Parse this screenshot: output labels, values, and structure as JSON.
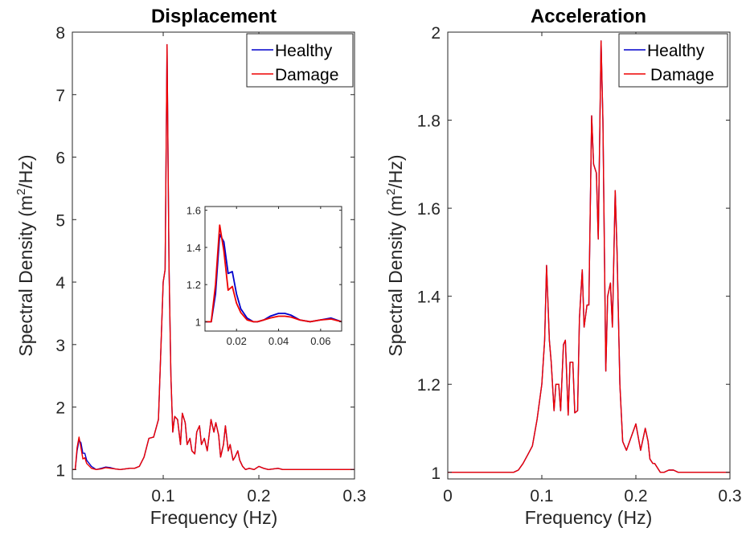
{
  "chart_data": [
    {
      "type": "line",
      "title": "Displacement",
      "xlabel": "Frequency (Hz)",
      "ylabel": "Spectral Density (m²/Hz)",
      "ylabel_parts": {
        "pre": "Spectral Density (m",
        "sup": "2",
        "post": "/Hz)"
      },
      "xlim": [
        0.005,
        0.3
      ],
      "ylim": [
        0.85,
        8
      ],
      "xticks": [
        0.1,
        0.2,
        0.3
      ],
      "xtick_labels": [
        "0.1",
        "0.2",
        "0.3"
      ],
      "yticks": [
        1,
        2,
        3,
        4,
        5,
        6,
        7,
        8
      ],
      "ytick_labels": [
        "1",
        "2",
        "3",
        "4",
        "5",
        "6",
        "7",
        "8"
      ],
      "legend_placement": "top-right",
      "grid": false,
      "series": [
        {
          "name": "Healthy",
          "color": "#0000cc",
          "x": [
            0.005,
            0.008,
            0.01,
            0.012,
            0.014,
            0.016,
            0.018,
            0.02,
            0.025,
            0.03,
            0.035,
            0.04,
            0.045,
            0.05,
            0.055,
            0.06,
            0.065,
            0.07,
            0.075,
            0.08,
            0.085,
            0.09,
            0.095,
            0.1,
            0.102,
            0.104,
            0.106,
            0.108,
            0.11,
            0.112,
            0.115,
            0.118,
            0.12,
            0.123,
            0.125,
            0.128,
            0.13,
            0.133,
            0.135,
            0.138,
            0.14,
            0.143,
            0.146,
            0.15,
            0.153,
            0.155,
            0.158,
            0.16,
            0.163,
            0.165,
            0.168,
            0.17,
            0.173,
            0.175,
            0.178,
            0.18,
            0.183,
            0.186,
            0.19,
            0.195,
            0.2,
            0.205,
            0.21,
            0.215,
            0.22,
            0.225,
            0.23,
            0.25,
            0.27,
            0.3
          ],
          "y": [
            1.0,
            1.0,
            1.3,
            1.47,
            1.43,
            1.26,
            1.26,
            1.15,
            1.05,
            1.0,
            1.02,
            1.04,
            1.03,
            1.01,
            1.0,
            1.01,
            1.02,
            1.02,
            1.05,
            1.2,
            1.5,
            1.52,
            1.8,
            4.0,
            4.2,
            7.8,
            4.3,
            2.5,
            1.6,
            1.85,
            1.8,
            1.4,
            1.9,
            1.75,
            1.4,
            1.5,
            1.3,
            1.25,
            1.6,
            1.7,
            1.4,
            1.5,
            1.3,
            1.8,
            1.6,
            1.75,
            1.55,
            1.2,
            1.4,
            1.7,
            1.3,
            1.4,
            1.15,
            1.2,
            1.3,
            1.15,
            1.05,
            1.0,
            1.02,
            1.0,
            1.05,
            1.02,
            1.0,
            1.01,
            1.02,
            1.0,
            1.0,
            1.0,
            1.0,
            1.0
          ]
        },
        {
          "name": "Damage",
          "color": "#ee0000",
          "x": [
            0.005,
            0.008,
            0.01,
            0.012,
            0.014,
            0.016,
            0.018,
            0.02,
            0.025,
            0.03,
            0.035,
            0.04,
            0.045,
            0.05,
            0.055,
            0.06,
            0.065,
            0.07,
            0.075,
            0.08,
            0.085,
            0.09,
            0.095,
            0.1,
            0.102,
            0.104,
            0.106,
            0.108,
            0.11,
            0.112,
            0.115,
            0.118,
            0.12,
            0.123,
            0.125,
            0.128,
            0.13,
            0.133,
            0.135,
            0.138,
            0.14,
            0.143,
            0.146,
            0.15,
            0.153,
            0.155,
            0.158,
            0.16,
            0.163,
            0.165,
            0.168,
            0.17,
            0.173,
            0.175,
            0.178,
            0.18,
            0.183,
            0.186,
            0.19,
            0.195,
            0.2,
            0.205,
            0.21,
            0.215,
            0.22,
            0.225,
            0.23,
            0.25,
            0.27,
            0.3
          ],
          "y": [
            1.0,
            1.0,
            1.35,
            1.52,
            1.35,
            1.17,
            1.19,
            1.1,
            1.02,
            1.0,
            1.01,
            1.03,
            1.02,
            1.01,
            1.0,
            1.01,
            1.02,
            1.02,
            1.05,
            1.2,
            1.5,
            1.52,
            1.8,
            4.0,
            4.2,
            7.8,
            4.3,
            2.5,
            1.6,
            1.85,
            1.8,
            1.4,
            1.9,
            1.75,
            1.4,
            1.5,
            1.3,
            1.25,
            1.6,
            1.7,
            1.4,
            1.5,
            1.3,
            1.8,
            1.6,
            1.75,
            1.55,
            1.2,
            1.4,
            1.7,
            1.3,
            1.4,
            1.15,
            1.2,
            1.3,
            1.15,
            1.05,
            1.0,
            1.02,
            1.0,
            1.05,
            1.02,
            1.0,
            1.01,
            1.02,
            1.0,
            1.0,
            1.0,
            1.0,
            1.0
          ]
        }
      ],
      "inset": {
        "xlim": [
          0.005,
          0.07
        ],
        "ylim": [
          0.95,
          1.62
        ],
        "xticks": [
          0.02,
          0.04,
          0.06
        ],
        "xtick_labels": [
          "0.02",
          "0.04",
          "0.06"
        ],
        "yticks": [
          1,
          1.2,
          1.4,
          1.6
        ],
        "ytick_labels": [
          "1",
          "1.2",
          "1.4",
          "1.6"
        ],
        "series": [
          {
            "name": "Healthy",
            "color": "#0000cc",
            "x": [
              0.005,
              0.008,
              0.01,
              0.012,
              0.014,
              0.016,
              0.018,
              0.02,
              0.022,
              0.025,
              0.028,
              0.03,
              0.033,
              0.036,
              0.04,
              0.043,
              0.046,
              0.05,
              0.055,
              0.06,
              0.065,
              0.07
            ],
            "y": [
              1.0,
              1.0,
              1.15,
              1.47,
              1.43,
              1.26,
              1.27,
              1.15,
              1.07,
              1.02,
              1.0,
              1.0,
              1.01,
              1.03,
              1.045,
              1.045,
              1.035,
              1.01,
              1.0,
              1.01,
              1.02,
              1.0
            ]
          },
          {
            "name": "Damage",
            "color": "#ee0000",
            "x": [
              0.005,
              0.008,
              0.01,
              0.012,
              0.014,
              0.016,
              0.018,
              0.02,
              0.022,
              0.025,
              0.028,
              0.03,
              0.033,
              0.036,
              0.04,
              0.043,
              0.046,
              0.05,
              0.055,
              0.06,
              0.065,
              0.07
            ],
            "y": [
              1.0,
              1.0,
              1.2,
              1.52,
              1.38,
              1.17,
              1.19,
              1.1,
              1.05,
              1.01,
              1.0,
              1.0,
              1.01,
              1.02,
              1.03,
              1.03,
              1.025,
              1.01,
              1.0,
              1.01,
              1.015,
              1.0
            ]
          }
        ]
      }
    },
    {
      "type": "line",
      "title": "Acceleration",
      "xlabel": "Frequency (Hz)",
      "ylabel": "Spectral Density (m²/Hz)",
      "ylabel_parts": {
        "pre": "Spectral Density (m",
        "sup": "2",
        "post": "/Hz)"
      },
      "xlim": [
        0,
        0.3
      ],
      "ylim": [
        0.985,
        2.0
      ],
      "xticks": [
        0,
        0.1,
        0.2,
        0.3
      ],
      "xtick_labels": [
        "0",
        "0.1",
        "0.2",
        "0.3"
      ],
      "yticks": [
        1,
        1.2,
        1.4,
        1.6,
        1.8,
        2
      ],
      "ytick_labels": [
        "1",
        "1.2",
        "1.4",
        "1.6",
        "1.8",
        "2"
      ],
      "legend_placement": "top-right",
      "grid": false,
      "series": [
        {
          "name": "Healthy",
          "color": "#0000cc",
          "x": [
            0,
            0.07,
            0.075,
            0.08,
            0.085,
            0.09,
            0.095,
            0.1,
            0.103,
            0.105,
            0.108,
            0.11,
            0.113,
            0.115,
            0.118,
            0.12,
            0.123,
            0.125,
            0.128,
            0.13,
            0.133,
            0.135,
            0.138,
            0.14,
            0.143,
            0.145,
            0.148,
            0.15,
            0.153,
            0.155,
            0.158,
            0.16,
            0.163,
            0.165,
            0.168,
            0.17,
            0.173,
            0.175,
            0.178,
            0.18,
            0.183,
            0.186,
            0.19,
            0.195,
            0.2,
            0.205,
            0.21,
            0.213,
            0.215,
            0.218,
            0.22,
            0.223,
            0.226,
            0.23,
            0.235,
            0.24,
            0.245,
            0.25,
            0.255,
            0.26,
            0.3
          ],
          "y": [
            1.0,
            1.0,
            1.005,
            1.02,
            1.04,
            1.06,
            1.12,
            1.2,
            1.3,
            1.47,
            1.3,
            1.25,
            1.14,
            1.2,
            1.2,
            1.14,
            1.29,
            1.3,
            1.13,
            1.25,
            1.25,
            1.135,
            1.14,
            1.35,
            1.46,
            1.33,
            1.38,
            1.38,
            1.81,
            1.7,
            1.68,
            1.53,
            1.98,
            1.8,
            1.23,
            1.4,
            1.43,
            1.33,
            1.64,
            1.5,
            1.2,
            1.07,
            1.05,
            1.08,
            1.11,
            1.05,
            1.1,
            1.07,
            1.03,
            1.02,
            1.02,
            1.01,
            1.0,
            1.0,
            1.005,
            1.005,
            1.0,
            1.0,
            1.0,
            1.0,
            1.0
          ]
        },
        {
          "name": "Damage",
          "color": "#ee0000",
          "x": [
            0,
            0.07,
            0.075,
            0.08,
            0.085,
            0.09,
            0.095,
            0.1,
            0.103,
            0.105,
            0.108,
            0.11,
            0.113,
            0.115,
            0.118,
            0.12,
            0.123,
            0.125,
            0.128,
            0.13,
            0.133,
            0.135,
            0.138,
            0.14,
            0.143,
            0.145,
            0.148,
            0.15,
            0.153,
            0.155,
            0.158,
            0.16,
            0.163,
            0.165,
            0.168,
            0.17,
            0.173,
            0.175,
            0.178,
            0.18,
            0.183,
            0.186,
            0.19,
            0.195,
            0.2,
            0.205,
            0.21,
            0.213,
            0.215,
            0.218,
            0.22,
            0.223,
            0.226,
            0.23,
            0.235,
            0.24,
            0.245,
            0.25,
            0.255,
            0.26,
            0.3
          ],
          "y": [
            1.0,
            1.0,
            1.005,
            1.02,
            1.04,
            1.06,
            1.12,
            1.2,
            1.3,
            1.47,
            1.3,
            1.25,
            1.14,
            1.2,
            1.2,
            1.14,
            1.29,
            1.3,
            1.13,
            1.25,
            1.25,
            1.135,
            1.14,
            1.35,
            1.46,
            1.33,
            1.38,
            1.38,
            1.81,
            1.7,
            1.68,
            1.53,
            1.98,
            1.8,
            1.23,
            1.4,
            1.43,
            1.33,
            1.64,
            1.5,
            1.2,
            1.07,
            1.05,
            1.08,
            1.11,
            1.05,
            1.1,
            1.07,
            1.03,
            1.02,
            1.02,
            1.01,
            1.0,
            1.0,
            1.005,
            1.005,
            1.0,
            1.0,
            1.0,
            1.0,
            1.0
          ]
        }
      ]
    }
  ]
}
